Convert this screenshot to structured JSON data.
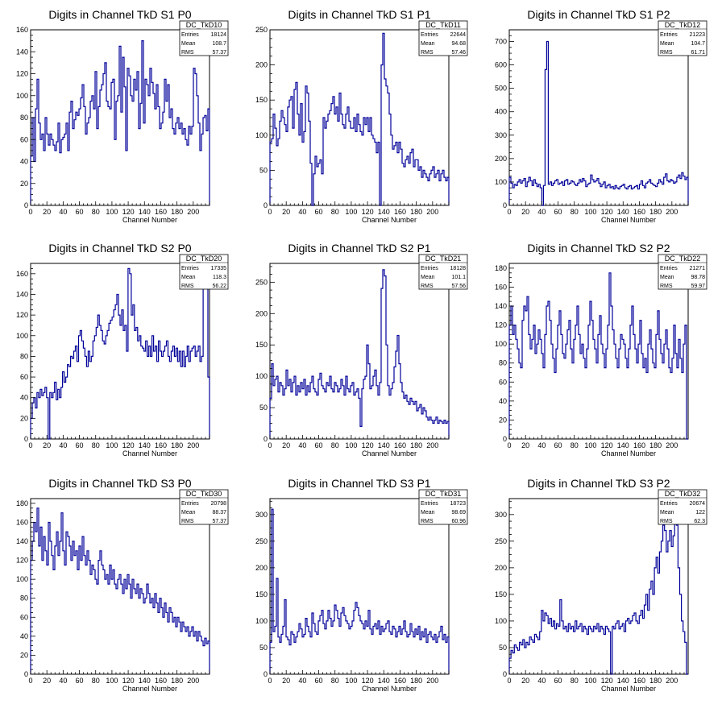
{
  "colors": {
    "histogram": "#000099",
    "frame": "#000000",
    "background": "#ffffff"
  },
  "chart_data": [
    {
      "type": "histogram",
      "title": "Digits in Channel TkD S1 P0",
      "xlabel": "Channel Number",
      "ylabel": "",
      "xlim": [
        0,
        220
      ],
      "ylim": [
        0,
        160
      ],
      "xticks": [
        0,
        20,
        40,
        60,
        80,
        100,
        120,
        140,
        160,
        180,
        200
      ],
      "yticks": [
        20,
        40,
        60,
        80,
        100,
        120,
        140,
        160
      ],
      "stats": {
        "name": "DC_TkD10",
        "entries": "18124",
        "mean": "108.7",
        "rms": "57.37"
      },
      "bins_per_block": 2,
      "values": [
        45,
        80,
        40,
        88,
        115,
        75,
        60,
        65,
        50,
        80,
        65,
        55,
        65,
        60,
        55,
        50,
        58,
        75,
        48,
        60,
        62,
        65,
        75,
        50,
        85,
        95,
        70,
        78,
        85,
        82,
        88,
        98,
        110,
        90,
        65,
        75,
        80,
        95,
        100,
        88,
        122,
        70,
        90,
        105,
        110,
        120,
        130,
        95,
        90,
        88,
        112,
        115,
        60,
        95,
        100,
        145,
        85,
        135,
        108,
        50,
        125,
        118,
        100,
        95,
        115,
        105,
        122,
        70,
        93,
        150,
        75,
        115,
        110,
        100,
        125,
        112,
        102,
        88,
        110,
        90,
        70,
        75,
        85,
        115,
        95,
        110,
        80,
        88,
        70,
        65,
        75,
        80,
        70,
        75,
        65,
        70,
        60,
        55,
        72,
        65,
        72,
        125,
        120,
        100,
        75,
        50,
        65,
        80,
        82,
        68,
        88
      ]
    },
    {
      "type": "histogram",
      "title": "Digits in Channel TkD S1 P1",
      "xlabel": "Channel Number",
      "ylabel": "",
      "xlim": [
        0,
        220
      ],
      "ylim": [
        0,
        250
      ],
      "xticks": [
        0,
        20,
        40,
        60,
        80,
        100,
        120,
        140,
        160,
        180,
        200
      ],
      "yticks": [
        50,
        100,
        150,
        200,
        250
      ],
      "stats": {
        "name": "DC_TkD11",
        "entries": "22644",
        "mean": "94.68",
        "rms": "57.46"
      },
      "bins_per_block": 2,
      "values": [
        90,
        95,
        130,
        110,
        85,
        95,
        120,
        135,
        125,
        115,
        105,
        140,
        150,
        155,
        110,
        165,
        175,
        130,
        100,
        145,
        90,
        105,
        170,
        160,
        120,
        60,
        0,
        45,
        70,
        55,
        60,
        65,
        45,
        125,
        110,
        120,
        130,
        135,
        145,
        155,
        130,
        140,
        120,
        160,
        130,
        115,
        110,
        130,
        140,
        120,
        110,
        110,
        125,
        105,
        130,
        115,
        105,
        100,
        125,
        115,
        125,
        105,
        125,
        100,
        95,
        90,
        75,
        90,
        0,
        200,
        245,
        180,
        170,
        160,
        130,
        100,
        80,
        85,
        90,
        75,
        90,
        80,
        60,
        55,
        65,
        70,
        60,
        75,
        80,
        55,
        65,
        65,
        50,
        55,
        40,
        50,
        45,
        40,
        35,
        45,
        50,
        55,
        40,
        45,
        50,
        35,
        45,
        50,
        40,
        35,
        40
      ]
    },
    {
      "type": "histogram",
      "title": "Digits in Channel TkD S1 P2",
      "xlabel": "Channel Number",
      "ylabel": "",
      "xlim": [
        0,
        220
      ],
      "ylim": [
        0,
        750
      ],
      "xticks": [
        0,
        20,
        40,
        60,
        80,
        100,
        120,
        140,
        160,
        180,
        200
      ],
      "yticks": [
        100,
        200,
        300,
        400,
        500,
        600,
        700
      ],
      "stats": {
        "name": "DC_TkD12",
        "entries": "21223",
        "mean": "104.7",
        "rms": "61.71"
      },
      "bins_per_block": 2,
      "values": [
        120,
        95,
        75,
        90,
        85,
        100,
        110,
        95,
        105,
        115,
        80,
        100,
        120,
        105,
        85,
        110,
        95,
        80,
        90,
        75,
        0,
        85,
        580,
        700,
        90,
        100,
        85,
        95,
        105,
        110,
        90,
        95,
        100,
        85,
        105,
        110,
        90,
        95,
        105,
        100,
        90,
        85,
        95,
        110,
        100,
        115,
        105,
        80,
        90,
        95,
        130,
        110,
        100,
        105,
        115,
        95,
        80,
        90,
        100,
        75,
        85,
        90,
        75,
        80,
        70,
        85,
        75,
        70,
        80,
        85,
        90,
        75,
        70,
        80,
        85,
        70,
        75,
        80,
        85,
        70,
        90,
        105,
        85,
        75,
        95,
        100,
        110,
        95,
        90,
        85,
        80,
        95,
        110,
        100,
        90,
        120,
        135,
        105,
        100,
        110,
        105,
        95,
        100,
        120,
        130,
        115,
        140,
        125,
        110,
        120
      ]
    },
    {
      "type": "histogram",
      "title": "Digits in Channel TkD S2 P0",
      "xlabel": "Channel Number",
      "ylabel": "",
      "xlim": [
        0,
        220
      ],
      "ylim": [
        0,
        170
      ],
      "xticks": [
        0,
        20,
        40,
        60,
        80,
        100,
        120,
        140,
        160,
        180,
        200
      ],
      "yticks": [
        20,
        40,
        60,
        80,
        100,
        120,
        140,
        160
      ],
      "stats": {
        "name": "DC_TkD20",
        "entries": "17335",
        "mean": "118.3",
        "rms": "56.22"
      },
      "bins_per_block": 2,
      "values": [
        20,
        35,
        40,
        30,
        45,
        40,
        48,
        42,
        45,
        50,
        40,
        0,
        45,
        40,
        45,
        55,
        38,
        48,
        40,
        50,
        65,
        55,
        60,
        72,
        70,
        80,
        78,
        85,
        90,
        75,
        100,
        105,
        95,
        88,
        80,
        70,
        85,
        75,
        80,
        95,
        100,
        108,
        120,
        110,
        105,
        95,
        92,
        100,
        105,
        112,
        115,
        118,
        125,
        130,
        140,
        120,
        110,
        125,
        105,
        110,
        85,
        165,
        160,
        120,
        130,
        105,
        108,
        95,
        100,
        90,
        88,
        85,
        95,
        80,
        90,
        80,
        100,
        85,
        90,
        75,
        95,
        85,
        80,
        85,
        90,
        95,
        80,
        75,
        85,
        90,
        80,
        88,
        75,
        85,
        70,
        85,
        70,
        80,
        90,
        75,
        85,
        88,
        90,
        80,
        85,
        90,
        75,
        80,
        150,
        160,
        165,
        60
      ]
    },
    {
      "type": "histogram",
      "title": "Digits in Channel TkD S2 P1",
      "xlabel": "Channel Number",
      "ylabel": "",
      "xlim": [
        0,
        220
      ],
      "ylim": [
        0,
        280
      ],
      "xticks": [
        0,
        20,
        40,
        60,
        80,
        100,
        120,
        140,
        160,
        180,
        200
      ],
      "yticks": [
        50,
        100,
        150,
        200,
        250
      ],
      "stats": {
        "name": "DC_TkD21",
        "entries": "18128",
        "mean": "101.1",
        "rms": "57.56"
      },
      "bins_per_block": 2,
      "values": [
        65,
        120,
        85,
        95,
        100,
        75,
        90,
        85,
        70,
        80,
        110,
        85,
        95,
        75,
        90,
        100,
        70,
        85,
        75,
        90,
        80,
        95,
        70,
        85,
        75,
        90,
        100,
        80,
        75,
        70,
        95,
        105,
        85,
        80,
        75,
        90,
        85,
        100,
        80,
        75,
        90,
        85,
        75,
        80,
        95,
        85,
        70,
        100,
        80,
        75,
        85,
        90,
        70,
        75,
        80,
        65,
        20,
        80,
        95,
        100,
        150,
        120,
        80,
        85,
        100,
        110,
        85,
        70,
        90,
        240,
        270,
        260,
        150,
        85,
        70,
        80,
        90,
        115,
        140,
        165,
        120,
        90,
        75,
        65,
        70,
        60,
        55,
        65,
        60,
        55,
        60,
        45,
        50,
        55,
        40,
        50,
        45,
        35,
        30,
        35,
        30,
        25,
        30,
        35,
        25,
        30,
        28,
        25,
        30,
        25,
        28
      ]
    },
    {
      "type": "histogram",
      "title": "Digits in Channel TkD S2 P2",
      "xlabel": "Channel Number",
      "ylabel": "",
      "xlim": [
        0,
        220
      ],
      "ylim": [
        0,
        185
      ],
      "xticks": [
        0,
        20,
        40,
        60,
        80,
        100,
        120,
        140,
        160,
        180,
        200
      ],
      "yticks": [
        20,
        40,
        60,
        80,
        100,
        120,
        140,
        160,
        180
      ],
      "stats": {
        "name": "DC_TkD22",
        "entries": "21271",
        "mean": "98.78",
        "rms": "59.97"
      },
      "bins_per_block": 2,
      "values": [
        120,
        140,
        110,
        120,
        105,
        95,
        80,
        75,
        125,
        140,
        135,
        150,
        110,
        95,
        105,
        120,
        90,
        100,
        115,
        105,
        90,
        75,
        110,
        140,
        145,
        125,
        100,
        85,
        70,
        95,
        120,
        135,
        110,
        90,
        85,
        100,
        115,
        125,
        95,
        80,
        105,
        120,
        140,
        110,
        90,
        100,
        85,
        75,
        95,
        120,
        145,
        125,
        105,
        95,
        80,
        110,
        130,
        100,
        90,
        75,
        95,
        120,
        175,
        140,
        115,
        100,
        85,
        75,
        95,
        110,
        105,
        100,
        85,
        75,
        95,
        120,
        140,
        110,
        95,
        80,
        100,
        125,
        90,
        75,
        85,
        70,
        100,
        115,
        95,
        80,
        75,
        110,
        135,
        105,
        90,
        80,
        100,
        115,
        95,
        75,
        70,
        85,
        120,
        90,
        75,
        105,
        85,
        70,
        100,
        120,
        0
      ]
    },
    {
      "type": "histogram",
      "title": "Digits in Channel TkD S3 P0",
      "xlabel": "Channel Number",
      "ylabel": "",
      "xlim": [
        0,
        220
      ],
      "ylim": [
        0,
        185
      ],
      "xticks": [
        0,
        20,
        40,
        60,
        80,
        100,
        120,
        140,
        160,
        180,
        200
      ],
      "yticks": [
        20,
        40,
        60,
        80,
        100,
        120,
        140,
        160,
        180
      ],
      "stats": {
        "name": "DC_TkD30",
        "entries": "20798",
        "mean": "88.37",
        "rms": "57.37"
      },
      "bins_per_block": 2,
      "values": [
        120,
        140,
        160,
        150,
        175,
        135,
        155,
        120,
        145,
        130,
        115,
        160,
        140,
        125,
        110,
        135,
        150,
        125,
        140,
        170,
        130,
        115,
        150,
        145,
        135,
        120,
        140,
        125,
        130,
        110,
        135,
        120,
        145,
        125,
        115,
        130,
        120,
        105,
        115,
        110,
        100,
        95,
        120,
        130,
        115,
        110,
        100,
        105,
        95,
        115,
        100,
        110,
        95,
        90,
        100,
        105,
        95,
        85,
        100,
        90,
        105,
        95,
        80,
        100,
        90,
        85,
        95,
        80,
        90,
        85,
        75,
        80,
        95,
        85,
        75,
        80,
        70,
        85,
        75,
        65,
        80,
        70,
        60,
        75,
        65,
        55,
        70,
        65,
        55,
        60,
        50,
        60,
        55,
        45,
        55,
        50,
        45,
        50,
        40,
        45,
        50,
        40,
        45,
        35,
        45,
        40,
        35,
        30,
        38,
        32,
        35
      ]
    },
    {
      "type": "histogram",
      "title": "Digits in Channel TkD S3 P1",
      "xlabel": "Channel Number",
      "ylabel": "",
      "xlim": [
        0,
        220
      ],
      "ylim": [
        0,
        330
      ],
      "xticks": [
        0,
        20,
        40,
        60,
        80,
        100,
        120,
        140,
        160,
        180,
        200
      ],
      "yticks": [
        50,
        100,
        150,
        200,
        250,
        300
      ],
      "stats": {
        "name": "DC_TkD31",
        "entries": "18723",
        "mean": "98.69",
        "rms": "60.96"
      },
      "bins_per_block": 2,
      "values": [
        60,
        310,
        80,
        90,
        180,
        70,
        60,
        75,
        90,
        140,
        70,
        65,
        55,
        80,
        75,
        60,
        70,
        80,
        95,
        85,
        70,
        75,
        105,
        90,
        80,
        70,
        115,
        95,
        80,
        75,
        100,
        110,
        120,
        95,
        85,
        100,
        120,
        105,
        90,
        100,
        130,
        120,
        105,
        90,
        115,
        125,
        110,
        100,
        95,
        85,
        90,
        100,
        120,
        135,
        125,
        110,
        100,
        95,
        85,
        100,
        90,
        120,
        85,
        75,
        90,
        95,
        85,
        100,
        75,
        90,
        80,
        85,
        95,
        100,
        80,
        75,
        90,
        85,
        70,
        80,
        90,
        75,
        85,
        100,
        80,
        70,
        75,
        95,
        80,
        70,
        85,
        75,
        90,
        65,
        80,
        70,
        85,
        60,
        75,
        80,
        70,
        65,
        75,
        60,
        70,
        80,
        90,
        65,
        75,
        60,
        70
      ]
    },
    {
      "type": "histogram",
      "title": "Digits in Channel TkD S3 P2",
      "xlabel": "Channel Number",
      "ylabel": "",
      "xlim": [
        0,
        220
      ],
      "ylim": [
        0,
        330
      ],
      "xticks": [
        0,
        20,
        40,
        60,
        80,
        100,
        120,
        140,
        160,
        180,
        200
      ],
      "yticks": [
        50,
        100,
        150,
        200,
        250,
        300
      ],
      "stats": {
        "name": "DC_TkD32",
        "entries": "20674",
        "mean": "122",
        "rms": "62.3"
      },
      "bins_per_block": 2,
      "values": [
        30,
        45,
        40,
        55,
        50,
        45,
        60,
        55,
        65,
        50,
        60,
        55,
        70,
        65,
        60,
        75,
        70,
        65,
        80,
        120,
        100,
        115,
        110,
        95,
        105,
        90,
        100,
        85,
        95,
        90,
        140,
        100,
        85,
        90,
        80,
        95,
        85,
        90,
        80,
        100,
        85,
        90,
        95,
        80,
        90,
        85,
        75,
        90,
        85,
        80,
        90,
        85,
        95,
        80,
        90,
        85,
        75,
        90,
        85,
        80,
        0,
        90,
        85,
        95,
        100,
        85,
        90,
        95,
        80,
        100,
        105,
        95,
        100,
        110,
        115,
        100,
        95,
        110,
        120,
        105,
        130,
        150,
        120,
        160,
        175,
        150,
        200,
        220,
        190,
        230,
        250,
        280,
        270,
        230,
        250,
        270,
        240,
        260,
        290,
        280,
        200,
        150,
        100,
        80,
        60,
        0
      ]
    }
  ]
}
